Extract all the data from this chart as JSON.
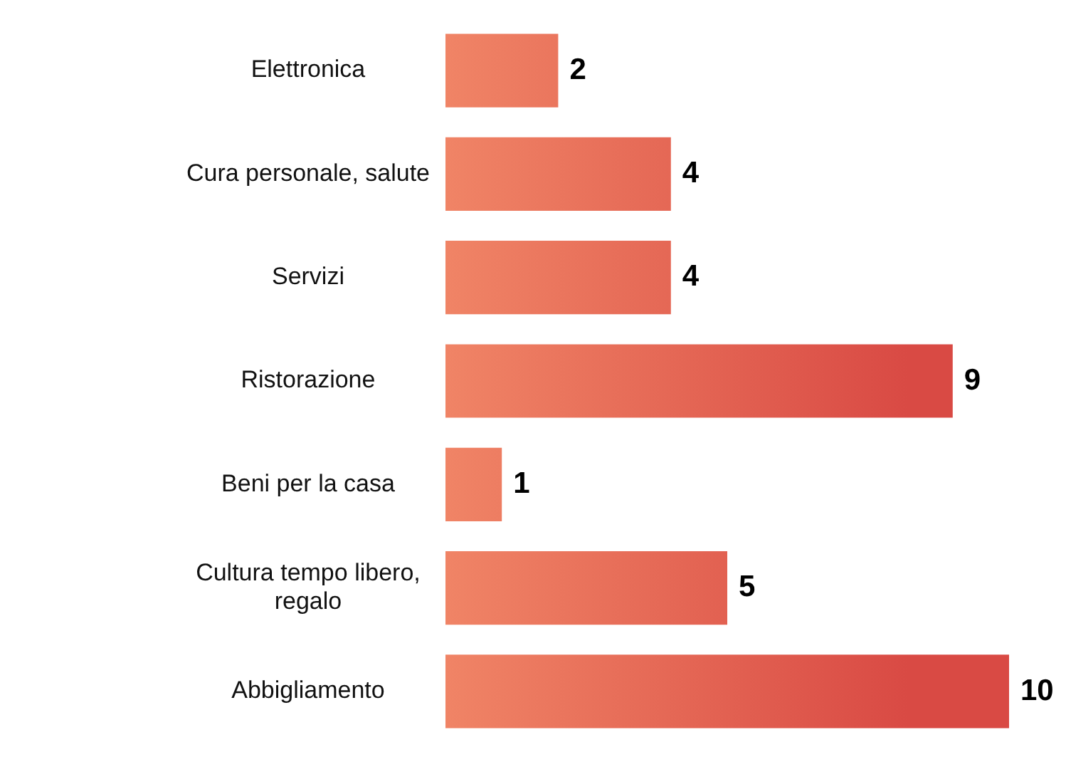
{
  "chart_data": {
    "type": "bar",
    "orientation": "horizontal",
    "categories": [
      "Elettronica",
      "Cura personale, salute",
      "Servizi",
      "Ristorazione",
      "Beni per la casa",
      "Cultura tempo libero, regalo",
      "Abbigliamento"
    ],
    "values": [
      2,
      4,
      4,
      9,
      1,
      5,
      10
    ],
    "color": "#d94a44",
    "xlim": [
      0,
      10
    ],
    "tick_labels": "y",
    "grid": false,
    "legend": false,
    "data_labels": true
  }
}
